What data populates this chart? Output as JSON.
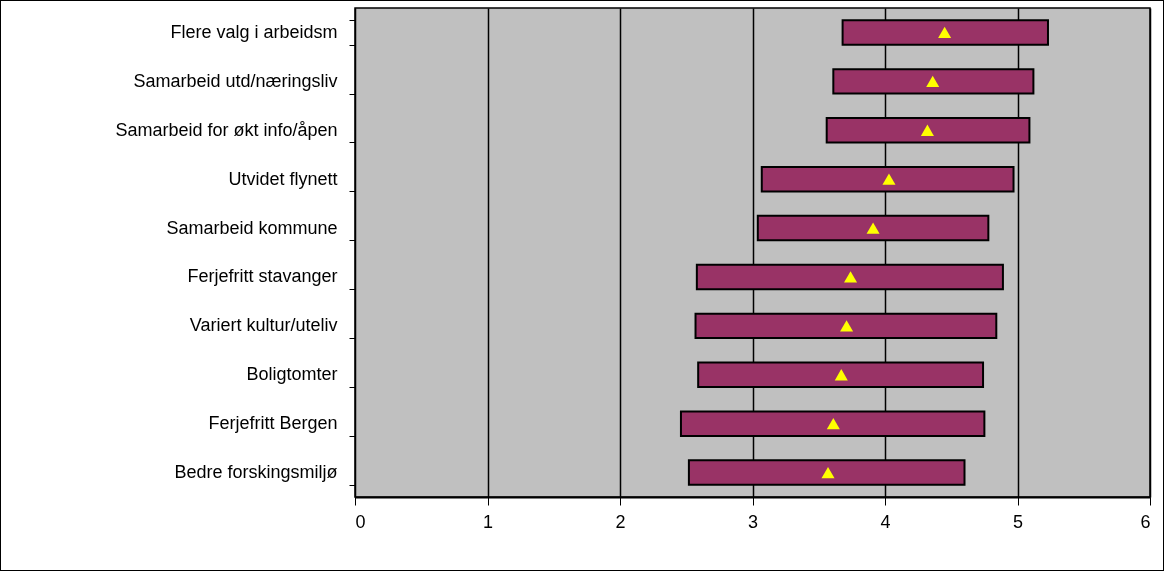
{
  "chart_data": {
    "type": "bar",
    "orientation": "horizontal",
    "categories": [
      "Flere valg i arbeidsm",
      "Samarbeid utd/næringsliv",
      "Samarbeid for økt info/åpen",
      "Utvidet flynett",
      "Samarbeid kommune",
      "Ferjefritt stavanger",
      "Variert kultur/uteliv",
      "Boligtomter",
      "Ferjefritt Bergen",
      "Bedre forskingsmiljø"
    ],
    "xlim": [
      0,
      6
    ],
    "xticks": [
      0,
      1,
      2,
      3,
      4,
      5,
      6
    ],
    "grid": "x",
    "series": [
      {
        "color": "#993366",
        "base": [
          3.68,
          3.61,
          3.56,
          3.07,
          3.04,
          2.58,
          2.57,
          2.59,
          2.46,
          2.52
        ],
        "values": [
          1.55,
          1.51,
          1.53,
          1.9,
          1.74,
          2.31,
          2.27,
          2.15,
          2.29,
          2.08
        ]
      },
      {
        "type": "scatter",
        "color": "#ffff00",
        "marker": "triangle",
        "values": [
          4.45,
          4.36,
          4.32,
          4.03,
          3.91,
          3.74,
          3.71,
          3.67,
          3.61,
          3.57
        ]
      }
    ]
  }
}
